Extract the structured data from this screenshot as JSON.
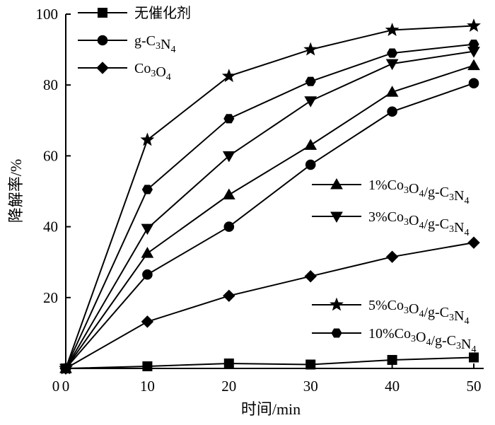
{
  "chart_data": {
    "type": "line",
    "title": "",
    "xlabel": "时间/min",
    "ylabel": "降解率/%",
    "xlim": [
      0,
      50
    ],
    "ylim": [
      0,
      100
    ],
    "xticks": [
      0,
      10,
      20,
      30,
      40,
      50
    ],
    "yticks": [
      20,
      40,
      60,
      80,
      100
    ],
    "grid": false,
    "x": [
      0,
      10,
      20,
      30,
      40,
      50
    ],
    "series": [
      {
        "name": "无催化剂",
        "marker": "square",
        "values": [
          0,
          0.6,
          1.4,
          1.1,
          2.4,
          3.1
        ],
        "legend_parts": [
          {
            "t": "无催化剂",
            "sub": false
          }
        ]
      },
      {
        "name": "g-C3N4",
        "marker": "circle",
        "values": [
          0,
          26.5,
          40,
          57.5,
          72.5,
          80.5
        ],
        "legend_parts": [
          {
            "t": "g-C",
            "sub": false
          },
          {
            "t": "3",
            "sub": true
          },
          {
            "t": "N",
            "sub": false
          },
          {
            "t": "4",
            "sub": true
          }
        ]
      },
      {
        "name": "Co3O4",
        "marker": "diamond",
        "values": [
          0,
          13.2,
          20.5,
          26,
          31.5,
          35.5
        ],
        "legend_parts": [
          {
            "t": "Co",
            "sub": false
          },
          {
            "t": "3",
            "sub": true
          },
          {
            "t": "O",
            "sub": false
          },
          {
            "t": "4",
            "sub": true
          }
        ]
      },
      {
        "name": "1%Co3O4/g-C3N4",
        "marker": "triangle-up",
        "values": [
          0,
          32.5,
          49,
          63,
          78,
          85.5
        ],
        "legend_parts": [
          {
            "t": "1%Co",
            "sub": false
          },
          {
            "t": "3",
            "sub": true
          },
          {
            "t": "O",
            "sub": false
          },
          {
            "t": "4",
            "sub": true
          },
          {
            "t": "/g-C",
            "sub": false
          },
          {
            "t": "3",
            "sub": true
          },
          {
            "t": "N",
            "sub": false
          },
          {
            "t": "4",
            "sub": true
          }
        ]
      },
      {
        "name": "3%Co3O4/g-C3N4",
        "marker": "triangle-down",
        "values": [
          0,
          39.5,
          60,
          75.5,
          86,
          89.5
        ],
        "legend_parts": [
          {
            "t": "3%Co",
            "sub": false
          },
          {
            "t": "3",
            "sub": true
          },
          {
            "t": "O",
            "sub": false
          },
          {
            "t": "4",
            "sub": true
          },
          {
            "t": "/g-C",
            "sub": false
          },
          {
            "t": "3",
            "sub": true
          },
          {
            "t": "N",
            "sub": false
          },
          {
            "t": "4",
            "sub": true
          }
        ]
      },
      {
        "name": "5%Co3O4/g-C3N4",
        "marker": "star",
        "values": [
          0,
          64.5,
          82.5,
          90,
          95.5,
          96.7
        ],
        "legend_parts": [
          {
            "t": "5%Co",
            "sub": false
          },
          {
            "t": "3",
            "sub": true
          },
          {
            "t": "O",
            "sub": false
          },
          {
            "t": "4",
            "sub": true
          },
          {
            "t": "/g-C",
            "sub": false
          },
          {
            "t": "3",
            "sub": true
          },
          {
            "t": "N",
            "sub": false
          },
          {
            "t": "4",
            "sub": true
          }
        ]
      },
      {
        "name": "10%Co3O4/g-C3N4",
        "marker": "hexagon",
        "values": [
          0,
          50.5,
          70.5,
          81,
          89,
          91.5
        ],
        "legend_parts": [
          {
            "t": "10%Co",
            "sub": false
          },
          {
            "t": "3",
            "sub": true
          },
          {
            "t": "O",
            "sub": false
          },
          {
            "t": "4",
            "sub": true
          },
          {
            "t": "/g-C",
            "sub": false
          },
          {
            "t": "3",
            "sub": true
          },
          {
            "t": "N",
            "sub": false
          },
          {
            "t": "4",
            "sub": true
          }
        ]
      }
    ]
  }
}
